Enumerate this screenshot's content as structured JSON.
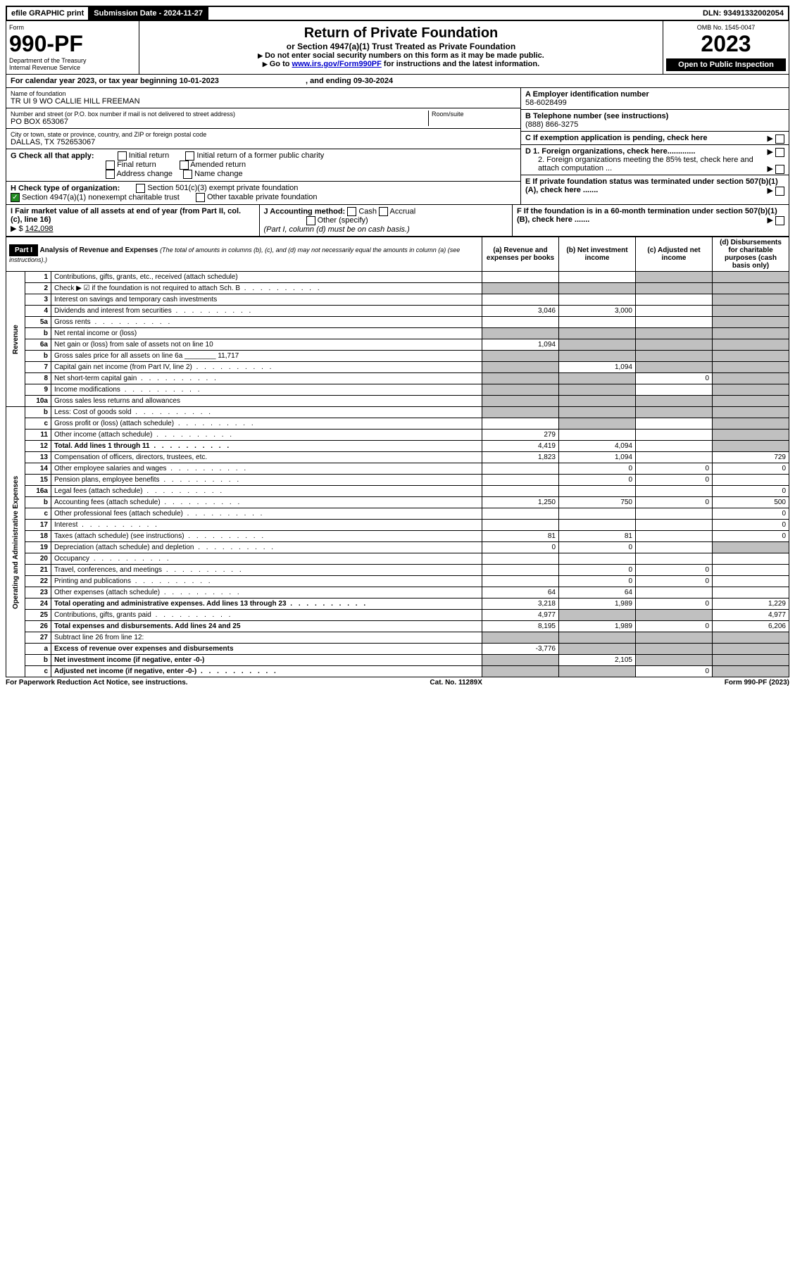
{
  "topbar": {
    "efile": "efile GRAPHIC print",
    "submission_label": "Submission Date - 2024-11-27",
    "dln": "DLN: 93491332002054"
  },
  "header": {
    "form_word": "Form",
    "form_no": "990-PF",
    "dept": "Department of the Treasury",
    "irs": "Internal Revenue Service",
    "title": "Return of Private Foundation",
    "subtitle": "or Section 4947(a)(1) Trust Treated as Private Foundation",
    "instr1": "Do not enter social security numbers on this form as it may be made public.",
    "instr2_a": "Go to ",
    "instr2_link": "www.irs.gov/Form990PF",
    "instr2_b": " for instructions and the latest information.",
    "omb": "OMB No. 1545-0047",
    "year": "2023",
    "open": "Open to Public Inspection"
  },
  "calyear": {
    "text_a": "For calendar year 2023, or tax year beginning ",
    "begin": "10-01-2023",
    "text_b": " , and ending ",
    "end": "09-30-2024"
  },
  "info": {
    "name_label": "Name of foundation",
    "name": "TR UI 9 WO CALLIE HILL FREEMAN",
    "addr_label": "Number and street (or P.O. box number if mail is not delivered to street address)",
    "addr": "PO BOX 653067",
    "room_label": "Room/suite",
    "city_label": "City or town, state or province, country, and ZIP or foreign postal code",
    "city": "DALLAS, TX  752653067",
    "a_label": "A Employer identification number",
    "a_val": "58-6028499",
    "b_label": "B Telephone number (see instructions)",
    "b_val": "(888) 866-3275",
    "c_label": "C If exemption application is pending, check here",
    "d1": "D 1. Foreign organizations, check here.............",
    "d2": "2. Foreign organizations meeting the 85% test, check here and attach computation ...",
    "e": "E  If private foundation status was terminated under section 507(b)(1)(A), check here .......",
    "f": "F  If the foundation is in a 60-month termination under section 507(b)(1)(B), check here .......",
    "g_label": "G Check all that apply:",
    "g_opts": [
      "Initial return",
      "Initial return of a former public charity",
      "Final return",
      "Amended return",
      "Address change",
      "Name change"
    ],
    "h_label": "H Check type of organization:",
    "h_opts": [
      "Section 501(c)(3) exempt private foundation",
      "Section 4947(a)(1) nonexempt charitable trust",
      "Other taxable private foundation"
    ],
    "i_label": "I Fair market value of all assets at end of year (from Part II, col. (c), line 16) ",
    "i_val": "142,098",
    "j_label": "J Accounting method:",
    "j_opts": [
      "Cash",
      "Accrual",
      "Other (specify)"
    ],
    "j_note": "(Part I, column (d) must be on cash basis.)"
  },
  "part1": {
    "label": "Part I",
    "title": "Analysis of Revenue and Expenses",
    "note": "(The total of amounts in columns (b), (c), and (d) may not necessarily equal the amounts in column (a) (see instructions).)",
    "cols": {
      "a": "(a)   Revenue and expenses per books",
      "b": "(b)   Net investment income",
      "c": "(c)   Adjusted net income",
      "d": "(d)  Disbursements for charitable purposes (cash basis only)"
    },
    "vlabels": {
      "rev": "Revenue",
      "exp": "Operating and Administrative Expenses"
    }
  },
  "rows": [
    {
      "n": "1",
      "d": "Contributions, gifts, grants, etc., received (attach schedule)",
      "a": "",
      "b": "",
      "c": "G",
      "dd": "G"
    },
    {
      "n": "2",
      "d": "Check ▶ ☑ if the foundation is not required to attach Sch. B",
      "dots": true,
      "a": "G",
      "b": "G",
      "c": "G",
      "dd": "G"
    },
    {
      "n": "3",
      "d": "Interest on savings and temporary cash investments",
      "a": "",
      "b": "",
      "c": "",
      "dd": "G"
    },
    {
      "n": "4",
      "d": "Dividends and interest from securities",
      "dots": true,
      "a": "3,046",
      "b": "3,000",
      "c": "",
      "dd": "G"
    },
    {
      "n": "5a",
      "d": "Gross rents",
      "dots": true,
      "a": "",
      "b": "",
      "c": "",
      "dd": "G"
    },
    {
      "n": "b",
      "d": "Net rental income or (loss)",
      "a": "G",
      "b": "G",
      "c": "G",
      "dd": "G"
    },
    {
      "n": "6a",
      "d": "Net gain or (loss) from sale of assets not on line 10",
      "a": "1,094",
      "b": "G",
      "c": "G",
      "dd": "G"
    },
    {
      "n": "b",
      "d": "Gross sales price for all assets on line 6a ________ 11,717",
      "a": "G",
      "b": "G",
      "c": "G",
      "dd": "G"
    },
    {
      "n": "7",
      "d": "Capital gain net income (from Part IV, line 2)",
      "dots": true,
      "a": "G",
      "b": "1,094",
      "c": "G",
      "dd": "G"
    },
    {
      "n": "8",
      "d": "Net short-term capital gain",
      "dots": true,
      "a": "G",
      "b": "G",
      "c": "0",
      "dd": "G"
    },
    {
      "n": "9",
      "d": "Income modifications",
      "dots": true,
      "a": "G",
      "b": "G",
      "c": "",
      "dd": "G"
    },
    {
      "n": "10a",
      "d": "Gross sales less returns and allowances",
      "a": "G",
      "b": "G",
      "c": "G",
      "dd": "G"
    },
    {
      "n": "b",
      "d": "Less: Cost of goods sold",
      "dots": true,
      "a": "G",
      "b": "G",
      "c": "G",
      "dd": "G"
    },
    {
      "n": "c",
      "d": "Gross profit or (loss) (attach schedule)",
      "dots": true,
      "a": "",
      "b": "G",
      "c": "",
      "dd": "G"
    },
    {
      "n": "11",
      "d": "Other income (attach schedule)",
      "dots": true,
      "a": "279",
      "b": "",
      "c": "",
      "dd": "G"
    },
    {
      "n": "12",
      "d": "Total. Add lines 1 through 11",
      "dots": true,
      "bold": true,
      "a": "4,419",
      "b": "4,094",
      "c": "",
      "dd": "G"
    },
    {
      "n": "13",
      "d": "Compensation of officers, directors, trustees, etc.",
      "a": "1,823",
      "b": "1,094",
      "c": "",
      "dd": "729"
    },
    {
      "n": "14",
      "d": "Other employee salaries and wages",
      "dots": true,
      "a": "",
      "b": "0",
      "c": "0",
      "dd": "0"
    },
    {
      "n": "15",
      "d": "Pension plans, employee benefits",
      "dots": true,
      "a": "",
      "b": "0",
      "c": "0",
      "dd": ""
    },
    {
      "n": "16a",
      "d": "Legal fees (attach schedule)",
      "dots": true,
      "a": "",
      "b": "",
      "c": "",
      "dd": "0"
    },
    {
      "n": "b",
      "d": "Accounting fees (attach schedule)",
      "dots": true,
      "a": "1,250",
      "b": "750",
      "c": "0",
      "dd": "500"
    },
    {
      "n": "c",
      "d": "Other professional fees (attach schedule)",
      "dots": true,
      "a": "",
      "b": "",
      "c": "",
      "dd": "0"
    },
    {
      "n": "17",
      "d": "Interest",
      "dots": true,
      "a": "",
      "b": "",
      "c": "",
      "dd": "0"
    },
    {
      "n": "18",
      "d": "Taxes (attach schedule) (see instructions)",
      "dots": true,
      "a": "81",
      "b": "81",
      "c": "",
      "dd": "0"
    },
    {
      "n": "19",
      "d": "Depreciation (attach schedule) and depletion",
      "dots": true,
      "a": "0",
      "b": "0",
      "c": "",
      "dd": "G"
    },
    {
      "n": "20",
      "d": "Occupancy",
      "dots": true,
      "a": "",
      "b": "",
      "c": "",
      "dd": ""
    },
    {
      "n": "21",
      "d": "Travel, conferences, and meetings",
      "dots": true,
      "a": "",
      "b": "0",
      "c": "0",
      "dd": ""
    },
    {
      "n": "22",
      "d": "Printing and publications",
      "dots": true,
      "a": "",
      "b": "0",
      "c": "0",
      "dd": ""
    },
    {
      "n": "23",
      "d": "Other expenses (attach schedule)",
      "dots": true,
      "a": "64",
      "b": "64",
      "c": "",
      "dd": ""
    },
    {
      "n": "24",
      "d": "Total operating and administrative expenses. Add lines 13 through 23",
      "dots": true,
      "bold": true,
      "a": "3,218",
      "b": "1,989",
      "c": "0",
      "dd": "1,229"
    },
    {
      "n": "25",
      "d": "Contributions, gifts, grants paid",
      "dots": true,
      "a": "4,977",
      "b": "G",
      "c": "G",
      "dd": "4,977"
    },
    {
      "n": "26",
      "d": "Total expenses and disbursements. Add lines 24 and 25",
      "bold": true,
      "a": "8,195",
      "b": "1,989",
      "c": "0",
      "dd": "6,206"
    },
    {
      "n": "27",
      "d": "Subtract line 26 from line 12:",
      "a": "G",
      "b": "G",
      "c": "G",
      "dd": "G"
    },
    {
      "n": "a",
      "d": "Excess of revenue over expenses and disbursements",
      "bold": true,
      "a": "-3,776",
      "b": "G",
      "c": "G",
      "dd": "G"
    },
    {
      "n": "b",
      "d": "Net investment income (if negative, enter -0-)",
      "bold": true,
      "a": "G",
      "b": "2,105",
      "c": "G",
      "dd": "G"
    },
    {
      "n": "c",
      "d": "Adjusted net income (if negative, enter -0-)",
      "dots": true,
      "bold": true,
      "a": "G",
      "b": "G",
      "c": "0",
      "dd": "G"
    }
  ],
  "footer": {
    "left": "For Paperwork Reduction Act Notice, see instructions.",
    "mid": "Cat. No. 11289X",
    "right": "Form 990-PF (2023)"
  }
}
